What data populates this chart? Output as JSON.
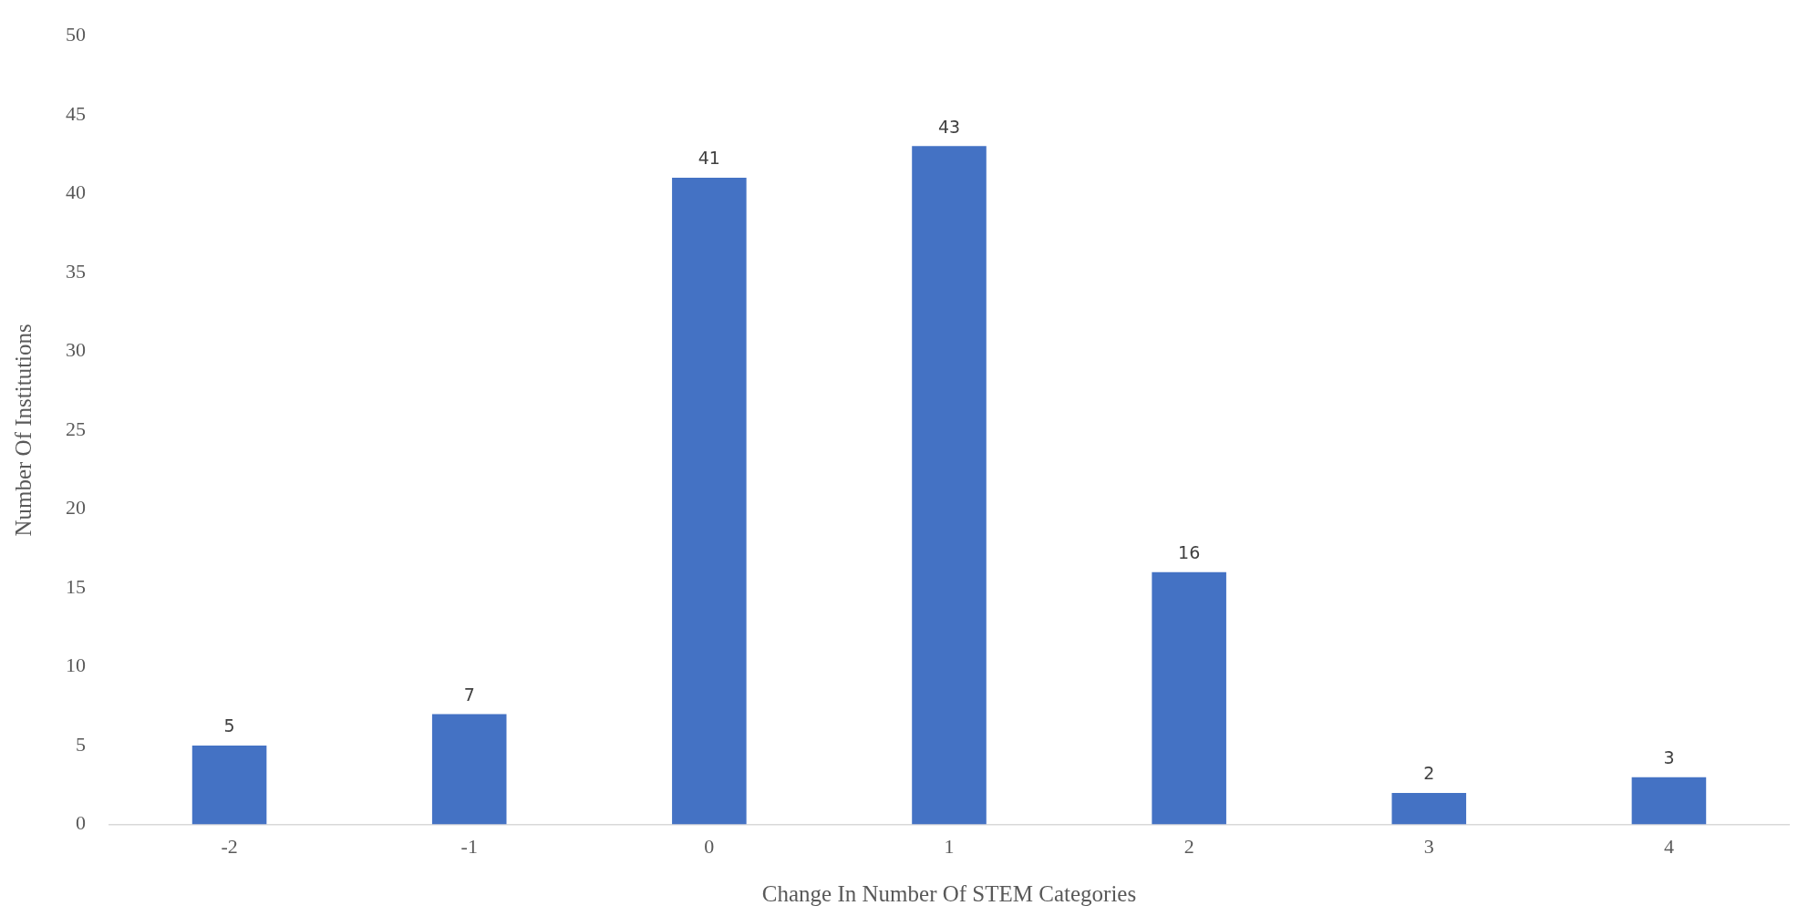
{
  "chart_data": {
    "type": "bar",
    "xlabel": "Change In Number Of STEM Categories",
    "ylabel": "Number Of Institutions",
    "categories": [
      "-2",
      "-1",
      "0",
      "1",
      "2",
      "3",
      "4"
    ],
    "values": [
      5,
      7,
      41,
      43,
      16,
      2,
      3
    ],
    "color": "#4472c4",
    "ylim": [
      0,
      50
    ],
    "yticks": [
      0,
      5,
      10,
      15,
      20,
      25,
      30,
      35,
      40,
      45,
      50
    ],
    "grid": false,
    "legend": false,
    "data_labels": true
  }
}
